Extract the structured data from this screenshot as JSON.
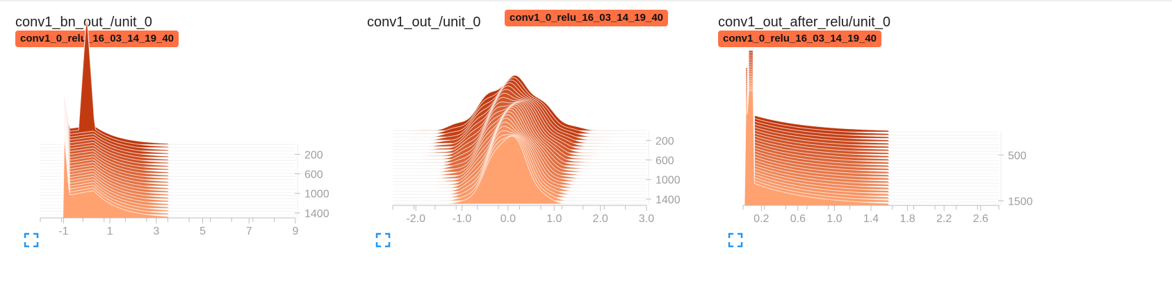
{
  "colors": {
    "accent": "#ff7043",
    "axis": "#bdbdbd",
    "tick_text": "#9e9e9e",
    "expand_icon": "#2196f3"
  },
  "cards": [
    {
      "title": "conv1_bn_out_/unit_0",
      "run_tag": "conv1_0_relu_16_03_14_19_40",
      "icon": "expand-icon"
    },
    {
      "title": "conv1_out_/unit_0",
      "run_tag": "conv1_0_relu_16_03_14_19_40",
      "icon": "expand-icon"
    },
    {
      "title": "conv1_out_after_relu/unit_0",
      "run_tag": "conv1_0_relu_16_03_14_19_40",
      "icon": "expand-icon"
    }
  ],
  "chart_data": [
    {
      "type": "area",
      "subtype": "histogram-offset",
      "title": "conv1_bn_out_/unit_0",
      "x_ticks": [
        "-1",
        "1",
        "3",
        "5",
        "7",
        "9"
      ],
      "x_tick_values": [
        -1,
        1,
        3,
        5,
        7,
        9
      ],
      "xlim": [
        -2,
        9
      ],
      "step_ticks": [
        "200",
        "600",
        "1000",
        "1400"
      ],
      "step_tick_values": [
        200,
        600,
        1000,
        1400
      ],
      "steps_range": [
        0,
        1500
      ],
      "num_slices": 24,
      "distribution": {
        "spike_at": -1.0,
        "spike_height": 1.0,
        "body_center": 0.3,
        "body_width": 1.1,
        "body_height": 0.38,
        "tail_end": 3.5,
        "late_spike_at": 0.0,
        "late_spike_height": 1.6
      }
    },
    {
      "type": "area",
      "subtype": "histogram-offset",
      "title": "conv1_out_/unit_0",
      "x_ticks": [
        "-2.0",
        "-1.0",
        "0.0",
        "1.0",
        "2.0",
        "3.0"
      ],
      "x_tick_values": [
        -2,
        -1,
        0,
        1,
        2,
        3
      ],
      "xlim": [
        -2.5,
        3.0
      ],
      "step_ticks": [
        "200",
        "600",
        "1000",
        "1400"
      ],
      "step_tick_values": [
        200,
        600,
        1000,
        1400
      ],
      "steps_range": [
        0,
        1500
      ],
      "num_slices": 24,
      "distribution": {
        "center": 0.0,
        "sigma": 0.4,
        "height": 1.0,
        "spread_growth": 0.5
      }
    },
    {
      "type": "area",
      "subtype": "histogram-offset",
      "title": "conv1_out_after_relu/unit_0",
      "x_ticks": [
        "0.2",
        "0.6",
        "1.0",
        "1.4",
        "1.8",
        "2.2",
        "2.6"
      ],
      "x_tick_values": [
        0.2,
        0.6,
        1.0,
        1.4,
        1.8,
        2.2,
        2.6
      ],
      "xlim": [
        0.0,
        2.8
      ],
      "step_ticks": [
        "500",
        "1500"
      ],
      "step_tick_values": [
        500,
        1500
      ],
      "steps_range": [
        0,
        1600
      ],
      "num_slices": 24,
      "distribution": {
        "spike_at": 0.05,
        "spike_height": 1.4,
        "decay_rate": 1.6,
        "body_height": 0.35,
        "tail_end": 1.3
      }
    }
  ]
}
